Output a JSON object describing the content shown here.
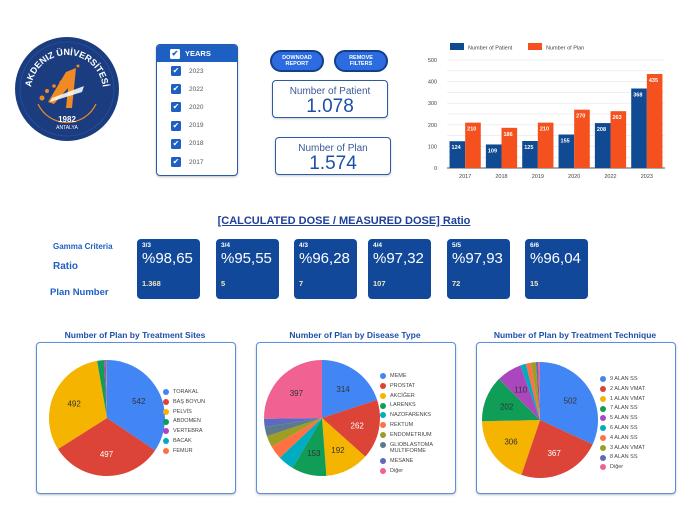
{
  "logo": {
    "name": "AKDENIZ ÜNİVERSİTESİ",
    "year": "1982",
    "city": "ANTALYA",
    "colors": {
      "navy": "#1b3d7f",
      "orange": "#f08a24"
    }
  },
  "filters": {
    "years_header": "YEARS",
    "years": [
      {
        "label": "2023",
        "checked": true
      },
      {
        "label": "2022",
        "checked": true
      },
      {
        "label": "2020",
        "checked": true
      },
      {
        "label": "2019",
        "checked": true
      },
      {
        "label": "2018",
        "checked": true
      },
      {
        "label": "2017",
        "checked": true
      }
    ]
  },
  "buttons": {
    "download": "DOWNOAD\nREPORT",
    "remove": "REMOVE\nFILTERS"
  },
  "kpis": {
    "patients_label": "Number of Patient",
    "patients_value": "1.078",
    "plans_label": "Number of Plan",
    "plans_value": "1.574"
  },
  "ratio": {
    "title": "[CALCULATED DOSE / MEASURED DOSE] Ratio",
    "row_labels": {
      "gamma": "Gamma Criteria",
      "ratio": "Ratio",
      "plan": "Plan Number"
    },
    "tiles": [
      {
        "gamma": "3/3",
        "ratio": "%98,65",
        "plans": "1.368"
      },
      {
        "gamma": "3/4",
        "ratio": "%95,55",
        "plans": "5"
      },
      {
        "gamma": "4/3",
        "ratio": "%96,28",
        "plans": "7"
      },
      {
        "gamma": "4/4",
        "ratio": "%97,32",
        "plans": "107"
      },
      {
        "gamma": "5/5",
        "ratio": "%97,93",
        "plans": "72"
      },
      {
        "gamma": "6/6",
        "ratio": "%96,04",
        "plans": "15"
      }
    ]
  },
  "chart_data": [
    {
      "type": "bar",
      "title": "",
      "categories": [
        "2017",
        "2018",
        "2019",
        "2020",
        "2022",
        "2023"
      ],
      "series": [
        {
          "name": "Number of Patient",
          "color": "#0f4a92",
          "values": [
            124,
            109,
            125,
            155,
            208,
            368
          ]
        },
        {
          "name": "Number of Plan",
          "color": "#f4511e",
          "values": [
            210,
            186,
            210,
            270,
            263,
            435
          ]
        }
      ],
      "yticks": [
        0,
        100,
        200,
        300,
        400,
        500
      ],
      "ylim": [
        0,
        500
      ],
      "grid": true,
      "legend": "top-left",
      "data_labels": true
    },
    {
      "type": "pie",
      "title": "Number of Plan by Treatment Sites",
      "slices": [
        {
          "label": "TORAKAL",
          "value": 542,
          "color": "#4285f4",
          "show": true
        },
        {
          "label": "BAŞ BOYUN",
          "value": 497,
          "color": "#db4437",
          "show": true
        },
        {
          "label": "PELVİS",
          "value": 492,
          "color": "#f4b400",
          "show": true
        },
        {
          "label": "ABDOMEN",
          "value": 30,
          "color": "#0f9d58",
          "show": false
        },
        {
          "label": "VERTEBRA",
          "value": 8,
          "color": "#ab47bc",
          "show": false
        },
        {
          "label": "BACAK",
          "value": 3,
          "color": "#00acc1",
          "show": false
        },
        {
          "label": "FEMUR",
          "value": 2,
          "color": "#ff7043",
          "show": false
        }
      ],
      "legend": "right"
    },
    {
      "type": "pie",
      "title": "Number of Plan by Disease Type",
      "slices": [
        {
          "label": "MEME",
          "value": 314,
          "color": "#4285f4",
          "show": true
        },
        {
          "label": "PROSTAT",
          "value": 262,
          "color": "#db4437",
          "show": true
        },
        {
          "label": "AKCİĞER",
          "value": 192,
          "color": "#f4b400",
          "show": true
        },
        {
          "label": "LARENKS",
          "value": 153,
          "color": "#0f9d58",
          "show": true
        },
        {
          "label": "NAZOFARENKS",
          "value": 70,
          "color": "#00acc1",
          "show": false
        },
        {
          "label": "REKTUM",
          "value": 60,
          "color": "#ff7043",
          "show": false
        },
        {
          "label": "ENDOMETRIUM",
          "value": 50,
          "color": "#9e9d24",
          "show": false
        },
        {
          "label": "GLIOBLASTOMA MULTIFORME",
          "value": 40,
          "color": "#5c7a89",
          "show": false
        },
        {
          "label": "MESANE",
          "value": 36,
          "color": "#5c6bc0",
          "show": false
        },
        {
          "label": "Diğer",
          "value": 397,
          "color": "#f06292",
          "show": true
        }
      ],
      "legend": "right"
    },
    {
      "type": "pie",
      "title": "Number of Plan by Treatment Technique",
      "slices": [
        {
          "label": "9 ALAN SS",
          "value": 502,
          "color": "#4285f4",
          "show": true
        },
        {
          "label": "2 ALAN VMAT",
          "value": 367,
          "color": "#db4437",
          "show": true
        },
        {
          "label": "1 ALAN VMAT",
          "value": 306,
          "color": "#f4b400",
          "show": true
        },
        {
          "label": "7 ALAN SS",
          "value": 202,
          "color": "#0f9d58",
          "show": true
        },
        {
          "label": "5 ALAN SS",
          "value": 110,
          "color": "#ab47bc",
          "show": true
        },
        {
          "label": "6 ALAN SS",
          "value": 25,
          "color": "#00acc1",
          "show": false
        },
        {
          "label": "4 ALAN SS",
          "value": 22,
          "color": "#ff7043",
          "show": false
        },
        {
          "label": "3 ALAN VMAT",
          "value": 22,
          "color": "#9e9d24",
          "show": false
        },
        {
          "label": "8 ALAN SS",
          "value": 10,
          "color": "#5c6bc0",
          "show": false
        },
        {
          "label": "Diğer",
          "value": 8,
          "color": "#f06292",
          "show": false
        }
      ],
      "legend": "right"
    }
  ]
}
